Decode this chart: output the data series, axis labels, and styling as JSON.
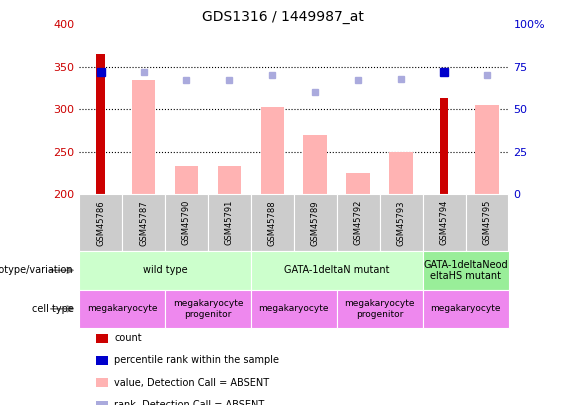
{
  "title": "GDS1316 / 1449987_at",
  "samples": [
    "GSM45786",
    "GSM45787",
    "GSM45790",
    "GSM45791",
    "GSM45788",
    "GSM45789",
    "GSM45792",
    "GSM45793",
    "GSM45794",
    "GSM45795"
  ],
  "count_values": [
    365,
    null,
    null,
    null,
    null,
    null,
    null,
    null,
    313,
    null
  ],
  "absent_values": [
    null,
    335,
    233,
    233,
    303,
    270,
    225,
    250,
    null,
    305
  ],
  "percentile_rank": [
    72,
    null,
    null,
    null,
    null,
    null,
    null,
    null,
    72,
    null
  ],
  "absent_rank": [
    null,
    72,
    67,
    67,
    70,
    60,
    67,
    68,
    null,
    70
  ],
  "ylim_left": [
    200,
    400
  ],
  "ylim_right": [
    0,
    100
  ],
  "yticks_left": [
    200,
    250,
    300,
    350,
    400
  ],
  "yticks_right": [
    0,
    25,
    50,
    75,
    100
  ],
  "count_color": "#cc0000",
  "absent_value_color": "#ffb3b3",
  "percentile_rank_color": "#0000cc",
  "absent_rank_color": "#aaaadd",
  "genotype_groups": [
    {
      "label": "wild type",
      "start": 0,
      "end": 3,
      "color": "#ccffcc"
    },
    {
      "label": "GATA-1deltaN mutant",
      "start": 4,
      "end": 7,
      "color": "#ccffcc"
    },
    {
      "label": "GATA-1deltaNeod\neltaHS mutant",
      "start": 8,
      "end": 9,
      "color": "#99ee99"
    }
  ],
  "cell_type_groups": [
    {
      "label": "megakaryocyte",
      "start": 0,
      "end": 1,
      "color": "#ee88ee"
    },
    {
      "label": "megakaryocyte\nprogenitor",
      "start": 2,
      "end": 3,
      "color": "#ee88ee"
    },
    {
      "label": "megakaryocyte",
      "start": 4,
      "end": 5,
      "color": "#ee88ee"
    },
    {
      "label": "megakaryocyte\nprogenitor",
      "start": 6,
      "end": 7,
      "color": "#ee88ee"
    },
    {
      "label": "megakaryocyte",
      "start": 8,
      "end": 9,
      "color": "#ee88ee"
    }
  ],
  "legend_items": [
    {
      "label": "count",
      "color": "#cc0000"
    },
    {
      "label": "percentile rank within the sample",
      "color": "#0000cc"
    },
    {
      "label": "value, Detection Call = ABSENT",
      "color": "#ffb3b3"
    },
    {
      "label": "rank, Detection Call = ABSENT",
      "color": "#aaaadd"
    }
  ]
}
